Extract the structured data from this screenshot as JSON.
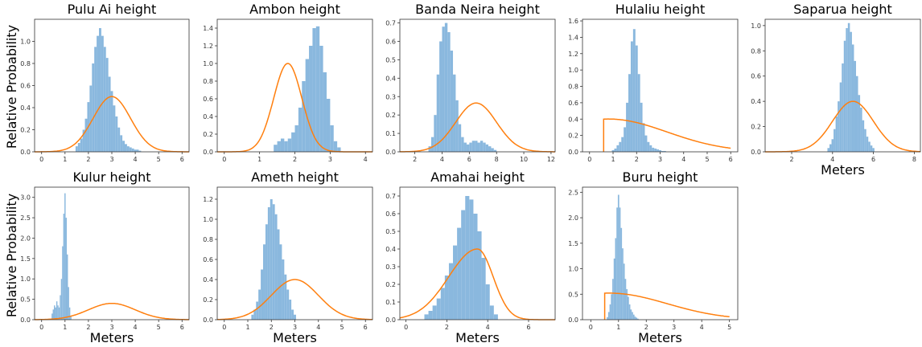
{
  "figure": {
    "ylabel": "Relative Probability",
    "xlabel": "Meters"
  },
  "colors": {
    "hist": "#8ab8de",
    "curve": "#ff7f0e",
    "axes": "#333333"
  },
  "chart_data": [
    {
      "type": "histogram+line",
      "title": "Pulu Ai height",
      "xlim": [
        -0.3,
        6.3
      ],
      "ylim": [
        0,
        1.2
      ],
      "xticks": [
        0,
        1,
        2,
        3,
        4,
        5,
        6
      ],
      "yticks": [
        0.0,
        0.2,
        0.4,
        0.6,
        0.8,
        1.0
      ],
      "hist": {
        "x": [
          1.5,
          1.6,
          1.7,
          1.8,
          1.9,
          2.0,
          2.1,
          2.2,
          2.3,
          2.4,
          2.5,
          2.6,
          2.7,
          2.8,
          2.9,
          3.0,
          3.1,
          3.2,
          3.3,
          3.4,
          3.5,
          3.6,
          3.7,
          3.8,
          3.9,
          4.0,
          4.1,
          4.2
        ],
        "y": [
          0.05,
          0.08,
          0.12,
          0.2,
          0.3,
          0.45,
          0.6,
          0.8,
          0.95,
          1.05,
          1.12,
          1.05,
          0.95,
          0.85,
          0.68,
          0.55,
          0.42,
          0.32,
          0.22,
          0.15,
          0.1,
          0.07,
          0.05,
          0.04,
          0.03,
          0.02,
          0.02,
          0.01
        ]
      },
      "curve": {
        "kind": "normal",
        "mean": 3.0,
        "sd": 0.8,
        "peak": 0.5
      }
    },
    {
      "type": "histogram+line",
      "title": "Ambon height",
      "xlim": [
        -0.2,
        4.2
      ],
      "ylim": [
        0,
        1.5
      ],
      "xticks": [
        0,
        1,
        2,
        3,
        4
      ],
      "yticks": [
        0.0,
        0.2,
        0.4,
        0.6,
        0.8,
        1.0,
        1.2,
        1.4
      ],
      "hist": {
        "x": [
          1.45,
          1.55,
          1.65,
          1.75,
          1.85,
          1.95,
          2.05,
          2.15,
          2.25,
          2.35,
          2.45,
          2.55,
          2.65,
          2.75,
          2.85,
          2.95,
          3.05,
          3.15,
          3.25
        ],
        "y": [
          0.08,
          0.12,
          0.15,
          0.12,
          0.15,
          0.22,
          0.3,
          0.5,
          0.8,
          1.05,
          1.2,
          1.4,
          1.42,
          1.2,
          0.9,
          0.6,
          0.3,
          0.12,
          0.05
        ]
      },
      "curve": {
        "kind": "normal",
        "mean": 1.8,
        "sd": 0.4,
        "peak": 1.0
      }
    },
    {
      "type": "histogram+line",
      "title": "Banda Neira height",
      "xlim": [
        0.9,
        12.3
      ],
      "ylim": [
        0,
        0.72
      ],
      "xticks": [
        2,
        4,
        6,
        8,
        10,
        12
      ],
      "yticks": [
        0.0,
        0.1,
        0.2,
        0.3,
        0.4,
        0.5,
        0.6,
        0.7
      ],
      "hist": {
        "x": [
          3.1,
          3.3,
          3.5,
          3.7,
          3.9,
          4.1,
          4.3,
          4.5,
          4.7,
          4.9,
          5.1,
          5.3,
          5.5,
          5.7,
          5.9,
          6.1,
          6.3,
          6.5,
          6.7,
          6.9,
          7.1,
          7.3,
          7.5,
          7.7,
          7.9
        ],
        "y": [
          0.03,
          0.08,
          0.2,
          0.42,
          0.6,
          0.68,
          0.7,
          0.65,
          0.55,
          0.42,
          0.28,
          0.15,
          0.08,
          0.05,
          0.04,
          0.05,
          0.06,
          0.06,
          0.05,
          0.06,
          0.05,
          0.04,
          0.03,
          0.02,
          0.01
        ]
      },
      "curve": {
        "kind": "normal",
        "mean": 6.5,
        "sd": 1.5,
        "peak": 0.265
      }
    },
    {
      "type": "histogram+line",
      "title": "Hulaliu height",
      "xlim": [
        -0.3,
        6.3
      ],
      "ylim": [
        0,
        1.62
      ],
      "xticks": [
        0,
        1,
        2,
        3,
        4,
        5,
        6
      ],
      "yticks": [
        0.0,
        0.2,
        0.4,
        0.6,
        0.8,
        1.0,
        1.2,
        1.4,
        1.6
      ],
      "hist": {
        "x": [
          1.0,
          1.1,
          1.2,
          1.3,
          1.4,
          1.5,
          1.6,
          1.7,
          1.8,
          1.9,
          2.0,
          2.1,
          2.2,
          2.3,
          2.4,
          2.5,
          2.6,
          2.7,
          2.8,
          2.9,
          3.0,
          3.1,
          3.2
        ],
        "y": [
          0.02,
          0.04,
          0.08,
          0.12,
          0.18,
          0.3,
          0.6,
          0.95,
          1.35,
          1.5,
          1.3,
          0.95,
          0.6,
          0.35,
          0.2,
          0.12,
          0.08,
          0.05,
          0.04,
          0.03,
          0.02,
          0.01,
          0.01
        ]
      },
      "curve": {
        "kind": "lognormal-trunc",
        "start": 0.6,
        "end": 6.0,
        "peak": 0.4
      }
    },
    {
      "type": "histogram+line",
      "title": "Saparua height",
      "xlim": [
        0.7,
        8.3
      ],
      "ylim": [
        0,
        1.05
      ],
      "xticks": [
        2,
        4,
        6,
        8
      ],
      "yticks": [
        0.0,
        0.2,
        0.4,
        0.6,
        0.8,
        1.0
      ],
      "hist": {
        "x": [
          3.8,
          3.9,
          4.0,
          4.1,
          4.2,
          4.3,
          4.4,
          4.5,
          4.6,
          4.7,
          4.8,
          4.9,
          5.0,
          5.1,
          5.2,
          5.3,
          5.4,
          5.5,
          5.6,
          5.7,
          5.8,
          5.9,
          6.0
        ],
        "y": [
          0.03,
          0.06,
          0.1,
          0.18,
          0.28,
          0.4,
          0.55,
          0.7,
          0.88,
          0.98,
          1.02,
          0.95,
          0.85,
          0.72,
          0.6,
          0.45,
          0.35,
          0.25,
          0.18,
          0.12,
          0.08,
          0.05,
          0.03
        ]
      },
      "curve": {
        "kind": "normal",
        "mean": 5.0,
        "sd": 1.0,
        "peak": 0.4
      }
    },
    {
      "type": "histogram+line",
      "title": "Kulur height",
      "xlim": [
        -0.3,
        6.3
      ],
      "ylim": [
        0,
        3.25
      ],
      "xticks": [
        0,
        1,
        2,
        3,
        4,
        5,
        6
      ],
      "yticks": [
        0.0,
        0.5,
        1.0,
        1.5,
        2.0,
        2.5,
        3.0
      ],
      "hist": {
        "x": [
          0.45,
          0.5,
          0.55,
          0.6,
          0.65,
          0.7,
          0.75,
          0.8,
          0.85,
          0.9,
          0.95,
          1.0,
          1.05,
          1.1,
          1.15,
          1.2,
          1.25
        ],
        "y": [
          0.15,
          0.25,
          0.35,
          0.3,
          0.45,
          0.35,
          0.3,
          0.6,
          1.0,
          1.8,
          2.6,
          3.1,
          2.5,
          1.6,
          0.8,
          0.3,
          0.1
        ]
      },
      "curve": {
        "kind": "normal",
        "mean": 3.0,
        "sd": 1.0,
        "peak": 0.4
      }
    },
    {
      "type": "histogram+line",
      "title": "Ameth height",
      "xlim": [
        -0.3,
        6.3
      ],
      "ylim": [
        0,
        1.32
      ],
      "xticks": [
        0,
        1,
        2,
        3,
        4,
        5,
        6
      ],
      "yticks": [
        0.0,
        0.2,
        0.4,
        0.6,
        0.8,
        1.0,
        1.2
      ],
      "hist": {
        "x": [
          1.2,
          1.3,
          1.4,
          1.5,
          1.6,
          1.7,
          1.8,
          1.9,
          2.0,
          2.1,
          2.2,
          2.3,
          2.4,
          2.5,
          2.6,
          2.7,
          2.8,
          2.9,
          3.0
        ],
        "y": [
          0.05,
          0.1,
          0.18,
          0.3,
          0.5,
          0.75,
          0.95,
          1.12,
          1.2,
          1.15,
          1.05,
          0.9,
          0.75,
          0.6,
          0.45,
          0.3,
          0.2,
          0.1,
          0.05
        ]
      },
      "curve": {
        "kind": "normal",
        "mean": 3.0,
        "sd": 1.0,
        "peak": 0.4
      }
    },
    {
      "type": "histogram+line",
      "title": "Amahai height",
      "xlim": [
        -0.3,
        7.3
      ],
      "ylim": [
        0,
        0.75
      ],
      "xticks": [
        0,
        2,
        4,
        6
      ],
      "yticks": [
        0.0,
        0.1,
        0.2,
        0.3,
        0.4,
        0.5,
        0.6,
        0.7
      ],
      "hist": {
        "x": [
          1.0,
          1.2,
          1.4,
          1.6,
          1.8,
          2.0,
          2.2,
          2.4,
          2.6,
          2.8,
          3.0,
          3.2,
          3.4,
          3.6,
          3.8,
          4.0,
          4.2,
          4.4
        ],
        "y": [
          0.03,
          0.05,
          0.08,
          0.12,
          0.18,
          0.25,
          0.32,
          0.42,
          0.52,
          0.62,
          0.7,
          0.68,
          0.6,
          0.5,
          0.35,
          0.2,
          0.08,
          0.03
        ]
      },
      "curve": {
        "kind": "skewnormal-left",
        "mode": 3.5,
        "peak": 0.4,
        "left": 0.4,
        "right": 5.5
      }
    },
    {
      "type": "histogram+line",
      "title": "Buru height",
      "xlim": [
        -0.3,
        5.3
      ],
      "ylim": [
        0,
        2.6
      ],
      "xticks": [
        0,
        1,
        2,
        3,
        4,
        5
      ],
      "yticks": [
        0.0,
        0.5,
        1.0,
        1.5,
        2.0,
        2.5
      ],
      "hist": {
        "x": [
          0.6,
          0.65,
          0.7,
          0.75,
          0.8,
          0.85,
          0.9,
          0.95,
          1.0,
          1.05,
          1.1,
          1.15,
          1.2,
          1.25,
          1.3,
          1.35,
          1.4,
          1.45,
          1.5,
          1.55,
          1.6,
          1.65,
          1.7
        ],
        "y": [
          0.05,
          0.15,
          0.3,
          0.5,
          0.8,
          1.2,
          1.6,
          2.2,
          2.45,
          2.2,
          1.8,
          1.4,
          1.1,
          0.8,
          0.6,
          0.45,
          0.3,
          0.2,
          0.15,
          0.1,
          0.06,
          0.04,
          0.02
        ]
      },
      "curve": {
        "kind": "lognormal-trunc",
        "start": 0.5,
        "end": 5.0,
        "peak": 0.52
      }
    }
  ]
}
